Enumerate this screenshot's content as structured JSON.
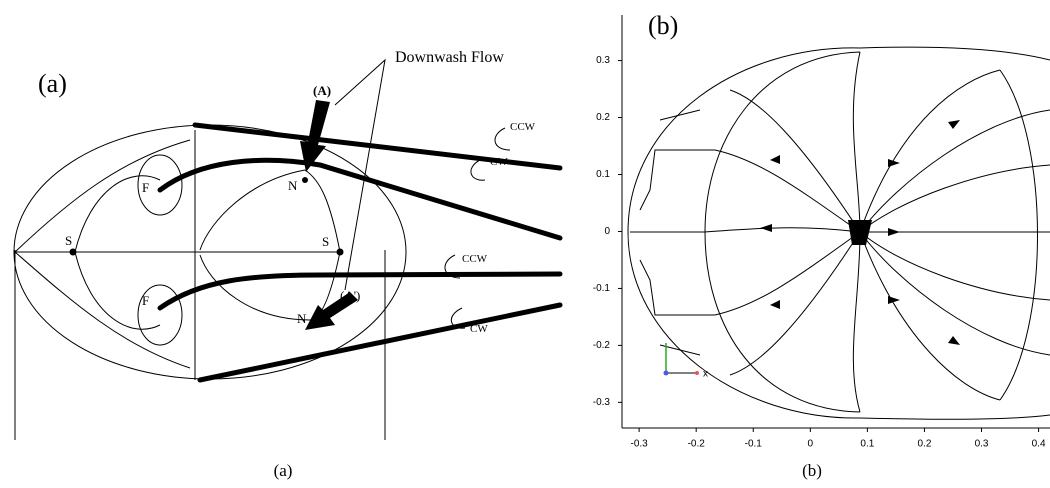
{
  "panel_a": {
    "label": "(a)",
    "downwash": "Downwash Flow",
    "arrow_top": "(A)",
    "arrow_bottom": "(A')",
    "rotation_labels": [
      "CCW",
      "CW",
      "CCW",
      "CW"
    ],
    "points": {
      "focus_top": "F",
      "focus_bottom": "F",
      "node_top": "N",
      "node_bottom": "N",
      "saddle_left": "S",
      "saddle_right": "S"
    }
  },
  "panel_b": {
    "label": "(b)",
    "axis_triad": "x",
    "xlim": [
      -0.33,
      0.42
    ],
    "ylim": [
      -0.345,
      0.38
    ],
    "xticks": [
      -0.3,
      -0.2,
      -0.1,
      0,
      0.1,
      0.2,
      0.3,
      0.4
    ],
    "yticks": [
      0.3,
      0.2,
      0.1,
      0,
      -0.1,
      -0.2,
      -0.3
    ]
  },
  "captions": [
    "(a)",
    "(b)"
  ]
}
